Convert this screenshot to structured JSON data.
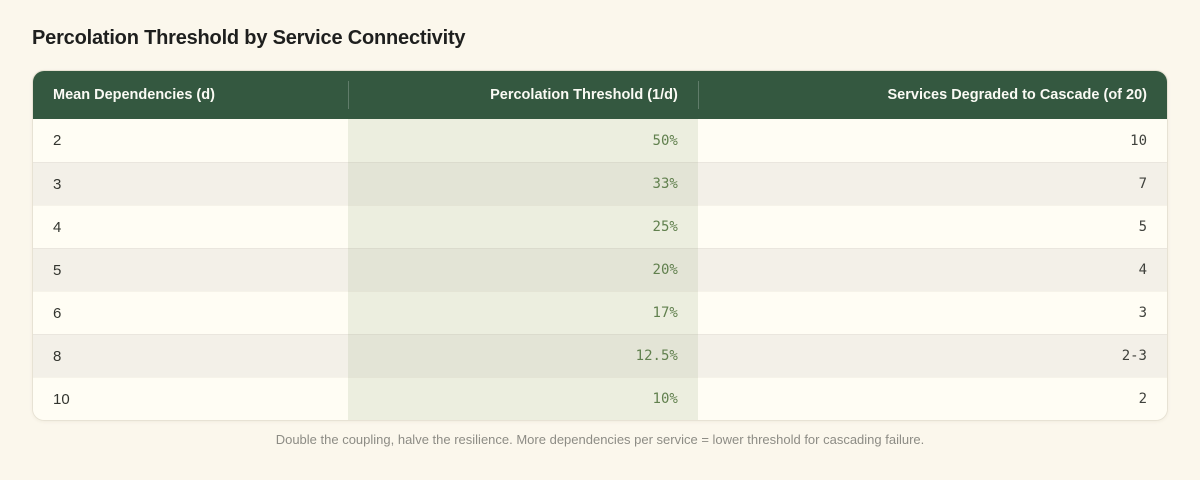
{
  "page": {
    "title": "Percolation Threshold by Service Connectivity",
    "caption": "Double the coupling, halve the resilience. More dependencies per service = lower threshold for cascading failure."
  },
  "table": {
    "columns": [
      "Mean Dependencies (d)",
      "Percolation Threshold (1/d)",
      "Services Degraded to Cascade (of 20)"
    ],
    "rows": [
      [
        "2",
        "50%",
        "10"
      ],
      [
        "3",
        "33%",
        "7"
      ],
      [
        "4",
        "25%",
        "5"
      ],
      [
        "5",
        "20%",
        "4"
      ],
      [
        "6",
        "17%",
        "3"
      ],
      [
        "8",
        "12.5%",
        "2-3"
      ],
      [
        "10",
        "10%",
        "2"
      ]
    ]
  },
  "chart_data": {
    "type": "table",
    "title": "Percolation Threshold by Service Connectivity",
    "columns": [
      "Mean Dependencies (d)",
      "Percolation Threshold (1/d)",
      "Services Degraded to Cascade (of 20)"
    ],
    "rows": [
      {
        "mean_dependencies": 2,
        "percolation_threshold": "50%",
        "services_degraded": "10"
      },
      {
        "mean_dependencies": 3,
        "percolation_threshold": "33%",
        "services_degraded": "7"
      },
      {
        "mean_dependencies": 4,
        "percolation_threshold": "25%",
        "services_degraded": "5"
      },
      {
        "mean_dependencies": 5,
        "percolation_threshold": "20%",
        "services_degraded": "4"
      },
      {
        "mean_dependencies": 6,
        "percolation_threshold": "17%",
        "services_degraded": "3"
      },
      {
        "mean_dependencies": 8,
        "percolation_threshold": "12.5%",
        "services_degraded": "2-3"
      },
      {
        "mean_dependencies": 10,
        "percolation_threshold": "10%",
        "services_degraded": "2"
      }
    ],
    "caption": "Double the coupling, halve the resilience. More dependencies per service = lower threshold for cascading failure."
  },
  "colors": {
    "page_background": "#FBF7EC",
    "header_background": "#345840",
    "header_text": "#FAFAF4",
    "row_odd_background": "#FFFDF4",
    "row_even_background": "#F3F0E8",
    "threshold_column_odd_background": "#ECEEDF",
    "threshold_column_even_background": "#E3E4D6",
    "threshold_text": "#61804E",
    "numeric_text": "#40423D",
    "caption_text": "#8D8C85"
  }
}
